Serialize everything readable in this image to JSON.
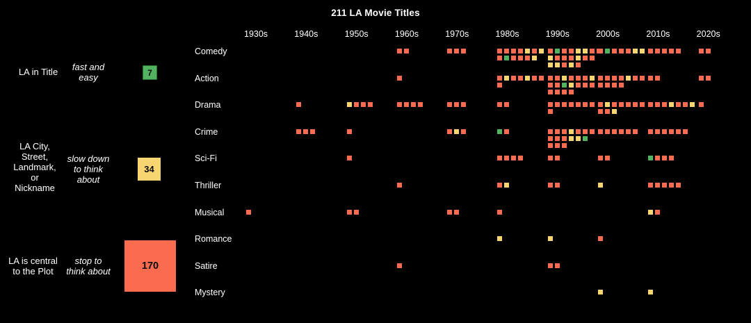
{
  "title": "211 LA Movie Titles",
  "colors": {
    "o": "#FA6B4F",
    "y": "#F7D571",
    "g": "#53B25F"
  },
  "legend": [
    {
      "label": "LA in Title",
      "note": "fast and\neasy",
      "count": "7",
      "color_key": "g"
    },
    {
      "label": "LA City,\nStreet,\nLandmark,\nor\nNickname",
      "note": "slow down\nto think\nabout",
      "count": "34",
      "color_key": "y"
    },
    {
      "label": "LA is central\nto the Plot",
      "note": "stop to\nthink about",
      "count": "170",
      "color_key": "o"
    }
  ],
  "chart_data": {
    "type": "heatmap",
    "title": "211 LA Movie Titles",
    "total_titles": 211,
    "x_categories": [
      "1930s",
      "1940s",
      "1950s",
      "1960s",
      "1970s",
      "1980s",
      "1990s",
      "2000s",
      "2010s",
      "2020s"
    ],
    "y_categories": [
      "Comedy",
      "Action",
      "Drama",
      "Crime",
      "Sci-Fi",
      "Thriller",
      "Musical",
      "Romance",
      "Satire",
      "Mystery"
    ],
    "symbol_legend": {
      "o": "LA is central to the Plot (orange, 170)",
      "y": "LA City/Street/Landmark/Nickname (yellow, 34)",
      "g": "LA in Title (green, 7)"
    },
    "cells": {
      "Comedy": {
        "1960s": [
          "oo"
        ],
        "1970s": [
          "ooo"
        ],
        "1980s": [
          "ooooyoy",
          "ogoooy"
        ],
        "1990s": [
          "ogooyyoo",
          "yoooyoo",
          "yyoyo"
        ],
        "2000s": [
          "ogoooyy"
        ],
        "2010s": [
          "ooooo"
        ],
        "2020s": [
          "oo"
        ]
      },
      "Action": {
        "1960s": [
          "o"
        ],
        "1980s": [
          "oyooyoo",
          "o"
        ],
        "1990s": [
          "ooyoooy",
          "oogyooo",
          "oooo"
        ],
        "2000s": [
          "ooooyoo",
          "oooo"
        ],
        "2010s": [
          "oo"
        ],
        "2020s": [
          "oo"
        ]
      },
      "Drama": {
        "1940s": [
          "o"
        ],
        "1950s": [
          "yooo"
        ],
        "1960s": [
          "oooo"
        ],
        "1970s": [
          "ooo"
        ],
        "1980s": [
          "oo"
        ],
        "1990s": [
          "ooooooo",
          "o"
        ],
        "2000s": [
          "oyooooo",
          "ooy"
        ],
        "2010s": [
          "oooyooy"
        ],
        "2020s": [
          "o"
        ]
      },
      "Crime": {
        "1940s": [
          "ooo"
        ],
        "1950s": [
          "o"
        ],
        "1970s": [
          "oyo"
        ],
        "1980s": [
          "go"
        ],
        "1990s": [
          "oooyooo",
          "oooyyg",
          "ooo"
        ],
        "2000s": [
          "oooooo"
        ],
        "2010s": [
          "oooooo"
        ]
      },
      "Sci-Fi": {
        "1950s": [
          "o"
        ],
        "1980s": [
          "oooo"
        ],
        "1990s": [
          "oo"
        ],
        "2000s": [
          "oo"
        ],
        "2010s": [
          "gooo"
        ]
      },
      "Thriller": {
        "1960s": [
          "o"
        ],
        "1980s": [
          "oy"
        ],
        "1990s": [
          "oo"
        ],
        "2000s": [
          "y"
        ],
        "2010s": [
          "ooooo"
        ]
      },
      "Musical": {
        "1930s": [
          "o"
        ],
        "1950s": [
          "oo"
        ],
        "1970s": [
          "oo"
        ],
        "1980s": [
          "o"
        ],
        "2010s": [
          "yo"
        ]
      },
      "Romance": {
        "1980s": [
          "y"
        ],
        "1990s": [
          "y"
        ],
        "2000s": [
          "o"
        ]
      },
      "Satire": {
        "1960s": [
          "o"
        ],
        "1990s": [
          "oo"
        ]
      },
      "Mystery": {
        "2000s": [
          "y"
        ],
        "2010s": [
          "y"
        ]
      }
    }
  }
}
